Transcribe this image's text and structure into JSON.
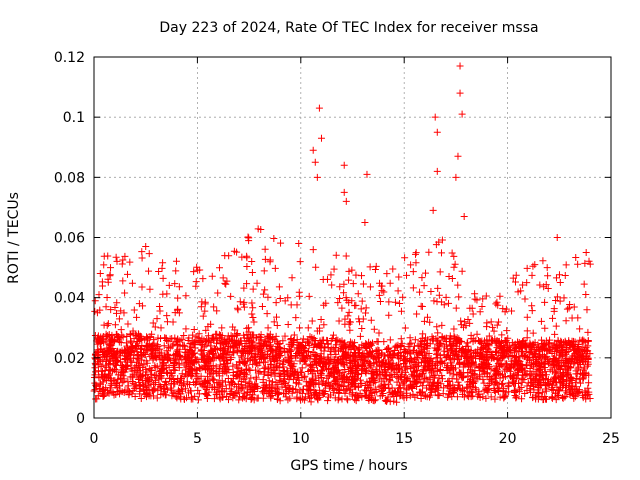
{
  "chart_data": {
    "type": "scatter",
    "title": "Day 223 of 2024, Rate Of TEC Index for receiver mssa",
    "xlabel": "GPS time / hours",
    "ylabel": "ROTI / TECUs",
    "xlim": [
      0,
      25
    ],
    "ylim": [
      0,
      0.12
    ],
    "xticks": [
      0,
      5,
      10,
      15,
      20,
      25
    ],
    "xtick_labels": [
      "0",
      "5",
      "10",
      "15",
      "20",
      "25"
    ],
    "yticks": [
      0,
      0.02,
      0.04,
      0.06,
      0.08,
      0.1,
      0.12
    ],
    "ytick_labels": [
      "0",
      "0.02",
      "0.04",
      "0.06",
      "0.08",
      "0.1",
      "0.12"
    ],
    "grid": true,
    "marker": "+",
    "series": [
      {
        "name": "ROTI",
        "color": "#ff0000",
        "baseline_profile": [
          {
            "x": 0.0,
            "low": 0.006,
            "typical": 0.018,
            "high": 0.04
          },
          {
            "x": 0.5,
            "low": 0.007,
            "typical": 0.02,
            "high": 0.054
          },
          {
            "x": 2.5,
            "low": 0.006,
            "typical": 0.02,
            "high": 0.056
          },
          {
            "x": 4.5,
            "low": 0.006,
            "typical": 0.018,
            "high": 0.051
          },
          {
            "x": 6.0,
            "low": 0.006,
            "typical": 0.02,
            "high": 0.052
          },
          {
            "x": 7.5,
            "low": 0.006,
            "typical": 0.02,
            "high": 0.063
          },
          {
            "x": 8.0,
            "low": 0.006,
            "typical": 0.02,
            "high": 0.064
          },
          {
            "x": 10.0,
            "low": 0.005,
            "typical": 0.018,
            "high": 0.058
          },
          {
            "x": 12.0,
            "low": 0.006,
            "typical": 0.018,
            "high": 0.055
          },
          {
            "x": 14.5,
            "low": 0.005,
            "typical": 0.016,
            "high": 0.052
          },
          {
            "x": 16.5,
            "low": 0.007,
            "typical": 0.02,
            "high": 0.062
          },
          {
            "x": 19.0,
            "low": 0.006,
            "typical": 0.018,
            "high": 0.042
          },
          {
            "x": 22.0,
            "low": 0.006,
            "typical": 0.018,
            "high": 0.055
          },
          {
            "x": 24.0,
            "low": 0.006,
            "typical": 0.018,
            "high": 0.056
          }
        ],
        "notable_points": [
          {
            "x": 10.6,
            "y": 0.089
          },
          {
            "x": 10.8,
            "y": 0.08
          },
          {
            "x": 10.9,
            "y": 0.103
          },
          {
            "x": 11.0,
            "y": 0.093
          },
          {
            "x": 10.7,
            "y": 0.085
          },
          {
            "x": 12.1,
            "y": 0.084
          },
          {
            "x": 12.1,
            "y": 0.075
          },
          {
            "x": 12.2,
            "y": 0.072
          },
          {
            "x": 13.2,
            "y": 0.081
          },
          {
            "x": 13.1,
            "y": 0.065
          },
          {
            "x": 16.5,
            "y": 0.1
          },
          {
            "x": 16.6,
            "y": 0.095
          },
          {
            "x": 16.6,
            "y": 0.082
          },
          {
            "x": 16.4,
            "y": 0.069
          },
          {
            "x": 17.7,
            "y": 0.117
          },
          {
            "x": 17.7,
            "y": 0.108
          },
          {
            "x": 17.8,
            "y": 0.101
          },
          {
            "x": 17.6,
            "y": 0.087
          },
          {
            "x": 17.5,
            "y": 0.08
          },
          {
            "x": 17.9,
            "y": 0.067
          },
          {
            "x": 9.9,
            "y": 0.058
          },
          {
            "x": 2.5,
            "y": 0.057
          },
          {
            "x": 22.4,
            "y": 0.06
          },
          {
            "x": 23.8,
            "y": 0.055
          }
        ]
      }
    ]
  }
}
